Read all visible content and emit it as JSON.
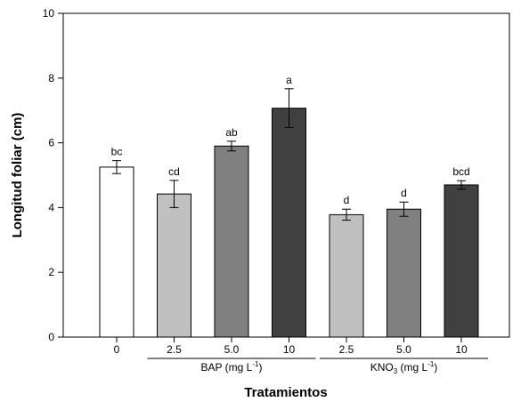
{
  "chart_data": {
    "type": "bar",
    "ylabel": "Longitud foliar (cm)",
    "xlabel": "Tratamientos",
    "ylim": [
      0,
      10
    ],
    "yticks": [
      "0",
      "2",
      "4",
      "6",
      "8",
      "10"
    ],
    "grid": false,
    "categories": [
      "0",
      "2.5",
      "5.0",
      "10",
      "2.5",
      "5.0",
      "10"
    ],
    "values": [
      5.25,
      4.42,
      5.9,
      7.07,
      3.78,
      3.95,
      4.7
    ],
    "errors": [
      0.2,
      0.42,
      0.15,
      0.6,
      0.17,
      0.22,
      0.13
    ],
    "significance": [
      "bc",
      "cd",
      "ab",
      "a",
      "d",
      "d",
      "bcd"
    ],
    "colors": [
      "#ffffff",
      "#c0c0c0",
      "#808080",
      "#404040",
      "#c0c0c0",
      "#808080",
      "#404040"
    ],
    "groups": [
      {
        "label": "BAP (mg L",
        "sup": "-1",
        "suffix": ")",
        "from_index": 1,
        "to_index": 3
      },
      {
        "label_prefix": "KNO",
        "sub": "3",
        "label_middle": " (mg L",
        "sup": "-1",
        "suffix": ")",
        "from_index": 4,
        "to_index": 6
      }
    ]
  }
}
